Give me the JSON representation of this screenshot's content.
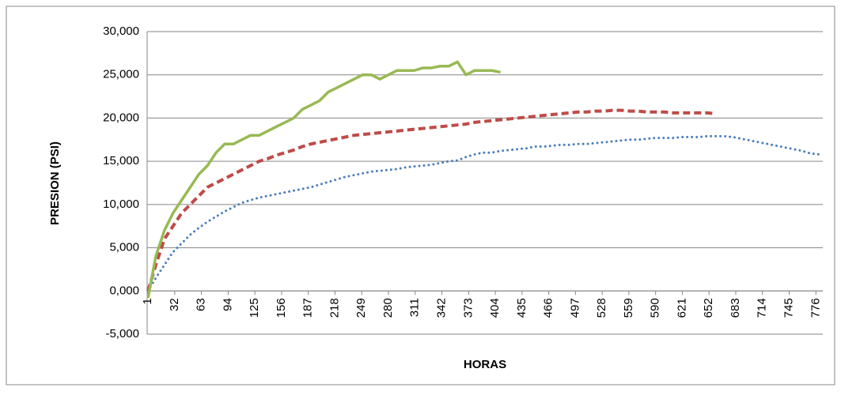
{
  "chart_data": {
    "type": "line",
    "ylabel": "PRESION (PSI)",
    "xlabel": "HORAS",
    "x": [
      1,
      10,
      20,
      30,
      40,
      50,
      60,
      70,
      80,
      90,
      100,
      110,
      120,
      130,
      140,
      150,
      160,
      170,
      180,
      190,
      200,
      210,
      220,
      230,
      240,
      250,
      260,
      270,
      280,
      290,
      300,
      310,
      320,
      330,
      340,
      350,
      360,
      370,
      380,
      390,
      400,
      410,
      420,
      430,
      440,
      450,
      460,
      470,
      480,
      490,
      500,
      510,
      520,
      530,
      540,
      550,
      560,
      570,
      580,
      590,
      600,
      610,
      620,
      630,
      640,
      650,
      660,
      670,
      680,
      690,
      700,
      710,
      720,
      730,
      740,
      750,
      760,
      770,
      780
    ],
    "xlim": [
      0,
      784
    ],
    "xticks": [
      1,
      32,
      63,
      94,
      125,
      156,
      187,
      218,
      249,
      280,
      311,
      342,
      373,
      404,
      435,
      466,
      497,
      528,
      559,
      590,
      621,
      652,
      683,
      714,
      745,
      776
    ],
    "ylim": [
      -5,
      30
    ],
    "yticks": [
      {
        "value": -5,
        "label": "-5,000"
      },
      {
        "value": 0,
        "label": "0,000"
      },
      {
        "value": 5,
        "label": "5,000"
      },
      {
        "value": 10,
        "label": "10,000"
      },
      {
        "value": 15,
        "label": "15,000"
      },
      {
        "value": 20,
        "label": "20,000"
      },
      {
        "value": 25,
        "label": "25,000"
      },
      {
        "value": 30,
        "label": "30,000"
      }
    ],
    "grid": true,
    "series": [
      {
        "color": "#4a7ebb",
        "style": "dotted",
        "values": [
          0,
          1.5,
          3,
          4.5,
          5.5,
          6.5,
          7.3,
          8,
          8.6,
          9.2,
          9.7,
          10.2,
          10.5,
          10.8,
          11,
          11.2,
          11.4,
          11.6,
          11.8,
          12,
          12.3,
          12.6,
          12.9,
          13.2,
          13.4,
          13.6,
          13.8,
          13.9,
          14,
          14.1,
          14.3,
          14.4,
          14.5,
          14.6,
          14.8,
          15,
          15.1,
          15.5,
          15.8,
          16,
          16,
          16.2,
          16.3,
          16.4,
          16.5,
          16.7,
          16.7,
          16.8,
          16.9,
          16.9,
          17,
          17,
          17.1,
          17.2,
          17.3,
          17.4,
          17.5,
          17.5,
          17.6,
          17.7,
          17.7,
          17.7,
          17.8,
          17.8,
          17.8,
          17.9,
          17.9,
          17.9,
          17.8,
          17.6,
          17.4,
          17.2,
          17,
          16.8,
          16.6,
          16.4,
          16.2,
          15.9,
          15.8
        ]
      },
      {
        "color": "#be4b48",
        "style": "dashed",
        "values": [
          0,
          3,
          6,
          7.5,
          9,
          10,
          11,
          12,
          12.5,
          13,
          13.5,
          14,
          14.5,
          15,
          15.3,
          15.7,
          16,
          16.3,
          16.7,
          17,
          17.2,
          17.4,
          17.6,
          17.8,
          18,
          18.1,
          18.2,
          18.3,
          18.4,
          18.5,
          18.6,
          18.7,
          18.8,
          18.9,
          19,
          19.1,
          19.2,
          19.3,
          19.5,
          19.6,
          19.7,
          19.8,
          19.9,
          20,
          20.1,
          20.2,
          20.3,
          20.4,
          20.5,
          20.6,
          20.7,
          20.7,
          20.8,
          20.8,
          20.9,
          20.9,
          20.8,
          20.8,
          20.7,
          20.7,
          20.7,
          20.6,
          20.6,
          20.6,
          20.6,
          20.6,
          20.5,
          null,
          null,
          null,
          null,
          null,
          null,
          null,
          null,
          null,
          null,
          null,
          null
        ]
      },
      {
        "color": "#98b954",
        "style": "solid",
        "values": [
          -0.8,
          4,
          7,
          9,
          10.5,
          12,
          13.5,
          14.5,
          16,
          17,
          17,
          17.5,
          18,
          18,
          18.5,
          19,
          19.5,
          20,
          21,
          21.5,
          22,
          23,
          23.5,
          24,
          24.5,
          25,
          25,
          24.5,
          25,
          25.5,
          25.5,
          25.5,
          25.8,
          25.8,
          26,
          26,
          26.5,
          25,
          25.5,
          25.5,
          25.5,
          25.3,
          null,
          null,
          null,
          null,
          null,
          null,
          null,
          null,
          null,
          null,
          null,
          null,
          null,
          null,
          null,
          null,
          null,
          null,
          null,
          null,
          null,
          null,
          null,
          null,
          null,
          null,
          null,
          null,
          null,
          null,
          null,
          null,
          null,
          null,
          null,
          null,
          null
        ]
      }
    ]
  }
}
